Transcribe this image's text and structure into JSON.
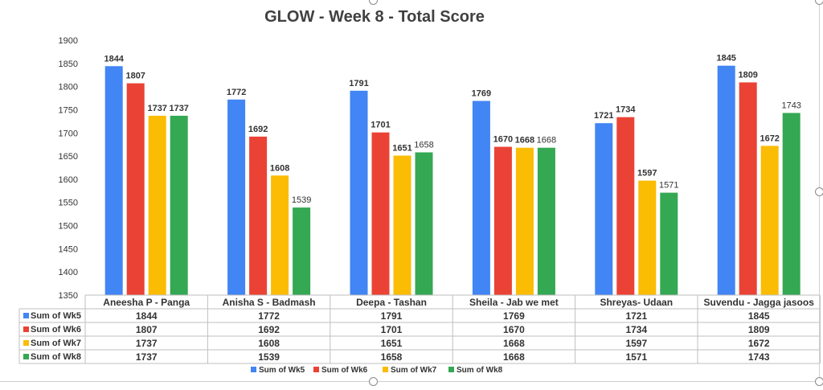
{
  "chart_data": {
    "type": "bar",
    "title": "GLOW - Week 8 - Total Score",
    "categories": [
      "Aneesha P - Panga",
      "Anisha S - Badmash",
      "Deepa - Tashan",
      "Sheila - Jab we met",
      "Shreyas- Udaan",
      "Suvendu - Jagga jasoos"
    ],
    "series": [
      {
        "name": "Sum of Wk5",
        "color": "#4285F4",
        "values": [
          1844,
          1772,
          1791,
          1769,
          1721,
          1845
        ]
      },
      {
        "name": "Sum of Wk6",
        "color": "#EA4335",
        "values": [
          1807,
          1692,
          1701,
          1670,
          1734,
          1809
        ]
      },
      {
        "name": "Sum of Wk7",
        "color": "#FBBC04",
        "values": [
          1737,
          1608,
          1651,
          1668,
          1597,
          1672
        ]
      },
      {
        "name": "Sum of Wk8",
        "color": "#34A853",
        "values": [
          1737,
          1539,
          1658,
          1668,
          1571,
          1743
        ]
      }
    ],
    "ylim": [
      1350,
      1900
    ],
    "yticks": [
      1350,
      1400,
      1450,
      1500,
      1550,
      1600,
      1650,
      1700,
      1750,
      1800,
      1850,
      1900
    ],
    "grid": false,
    "data_table": true,
    "legend_position": "bottom"
  }
}
